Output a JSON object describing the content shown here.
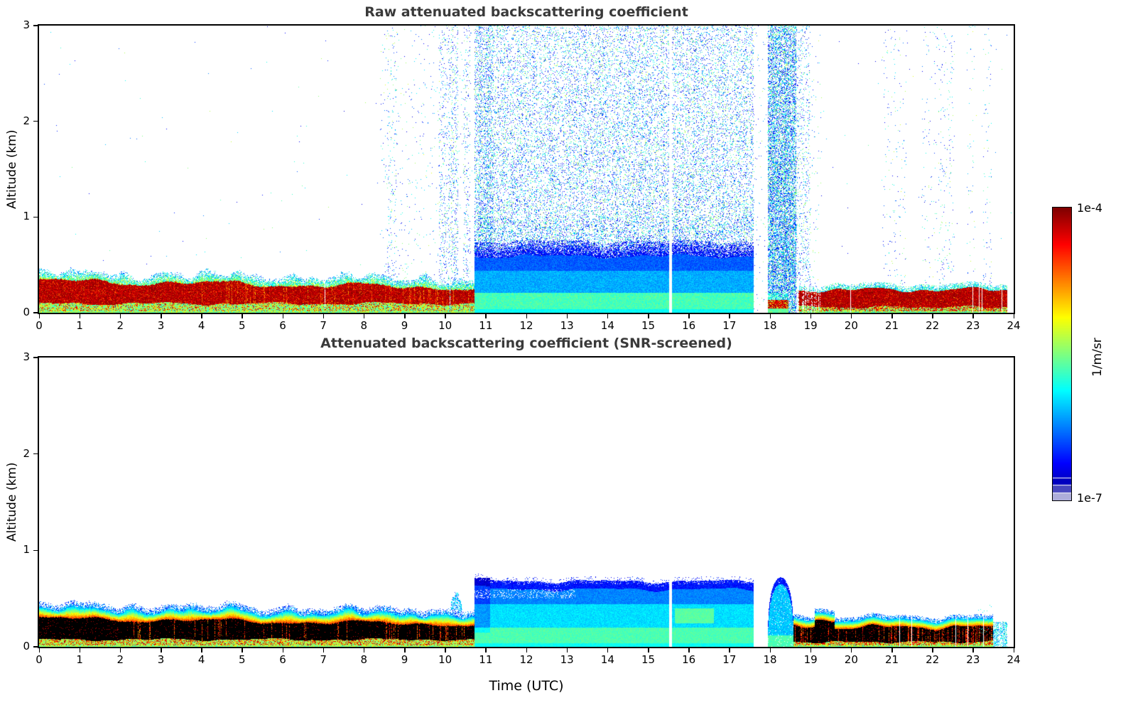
{
  "figure": {
    "xlabel": "Time (UTC)",
    "background": "#ffffff",
    "colorbar": {
      "max_label": "1e-4",
      "min_label": "1e-7",
      "units": "1/m/sr",
      "colormap": "jet",
      "scale": "log"
    }
  },
  "chart_data": [
    {
      "type": "heatmap",
      "title": "Raw attenuated backscattering coefficient",
      "xlabel": "",
      "ylabel": "Altitude (km)",
      "xlim": [
        0,
        24
      ],
      "ylim": [
        0,
        3
      ],
      "xticks": [
        0,
        1,
        2,
        3,
        4,
        5,
        6,
        7,
        8,
        9,
        10,
        11,
        12,
        13,
        14,
        15,
        16,
        17,
        18,
        19,
        20,
        21,
        22,
        23,
        24
      ],
      "yticks": [
        0,
        1,
        2,
        3
      ],
      "colormap": "jet",
      "value_range": {
        "min": "1e-7",
        "max": "1e-4",
        "units": "1/m/sr"
      },
      "features": {
        "thin_gap_t": 15.55,
        "aerosol_band": {
          "t_start": 0,
          "t_end": 10.72,
          "core_top_km": 0.33,
          "core_bottom_km": 0.1,
          "edge_top_km": 0.45,
          "core_style": "dark-red"
        },
        "noise": {
          "t_start": 8.4,
          "t_end": 19.3,
          "z_max_km": 3.0
        },
        "noise_columns_pre": [
          [
            8.58,
            8.82,
            0.05
          ],
          [
            9.85,
            10.05,
            0.1
          ],
          [
            10.08,
            10.32,
            0.13
          ],
          [
            10.45,
            10.62,
            0.08
          ]
        ],
        "noise_columns_post": [
          [
            20.75,
            21.02,
            0.012
          ],
          [
            21.05,
            21.35,
            0.014
          ],
          [
            21.75,
            22.12,
            0.012
          ],
          [
            22.15,
            22.55,
            0.025
          ],
          [
            22.85,
            23.06,
            0.016
          ],
          [
            23.24,
            23.46,
            0.02
          ]
        ],
        "rain_layer": {
          "t_start": 10.72,
          "t_end": 17.6,
          "top_km": 0.75
        },
        "clear_gap": {
          "t_start": 17.6,
          "t_end": 17.95
        },
        "burst": {
          "t_start": 17.95,
          "t_end": 18.65
        },
        "surface_band": {
          "t_start": 18.7,
          "t_end": 23.85,
          "core_top_km": 0.24,
          "core_style": "dark-red"
        }
      }
    },
    {
      "type": "heatmap",
      "title": "Attenuated backscattering coefficient (SNR-screened)",
      "xlabel": "Time (UTC)",
      "ylabel": "Altitude (km)",
      "xlim": [
        0,
        24
      ],
      "ylim": [
        0,
        3
      ],
      "xticks": [
        0,
        1,
        2,
        3,
        4,
        5,
        6,
        7,
        8,
        9,
        10,
        11,
        12,
        13,
        14,
        15,
        16,
        17,
        18,
        19,
        20,
        21,
        22,
        23,
        24
      ],
      "yticks": [
        0,
        1,
        2,
        3
      ],
      "colormap": "jet",
      "value_range": {
        "min": "1e-7",
        "max": "1e-4",
        "units": "1/m/sr"
      },
      "features": {
        "thin_gap_t": 15.55,
        "aerosol_band": {
          "t_start": 0,
          "t_end": 10.72,
          "core_top_km": 0.3,
          "core_bottom_km": 0.08,
          "edge_top_km": 0.42,
          "core_style": "black-saturated"
        },
        "rain_layer": {
          "t_start": 10.72,
          "t_end": 17.6,
          "top_km": 0.68
        },
        "clear_gap": {
          "t_start": 17.6,
          "t_end": 17.95
        },
        "hump": {
          "t_start": 17.95,
          "t_end": 18.58,
          "peak_km": 0.72
        },
        "surface_band": {
          "t_start": 18.58,
          "t_end": 23.85,
          "core_top_km": 0.205,
          "core_style": "black-saturated"
        }
      }
    }
  ]
}
